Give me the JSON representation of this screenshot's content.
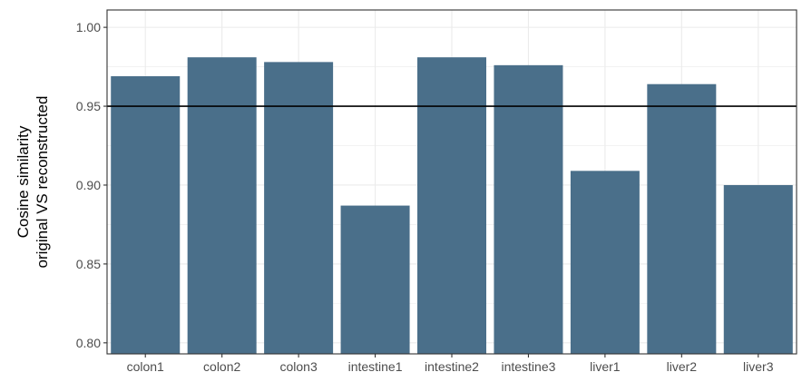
{
  "chart_data": {
    "type": "bar",
    "categories": [
      "colon1",
      "colon2",
      "colon3",
      "intestine1",
      "intestine2",
      "intestine3",
      "liver1",
      "liver2",
      "liver3"
    ],
    "values": [
      0.969,
      0.981,
      0.978,
      0.887,
      0.981,
      0.976,
      0.909,
      0.964,
      0.9
    ],
    "ylabel": [
      "Cosine similarity",
      "original VS reconstructed"
    ],
    "xlabel": "",
    "title": "",
    "ylim": [
      0.793,
      1.011
    ],
    "yticks": [
      "0.80",
      "0.85",
      "0.90",
      "0.95",
      "1.00"
    ],
    "reference_line": 0.95,
    "bar_color": "#4a6f8a",
    "grid": true,
    "grid_color": "#ebebeb",
    "reference_line_color": "#000000",
    "legend": "none"
  }
}
